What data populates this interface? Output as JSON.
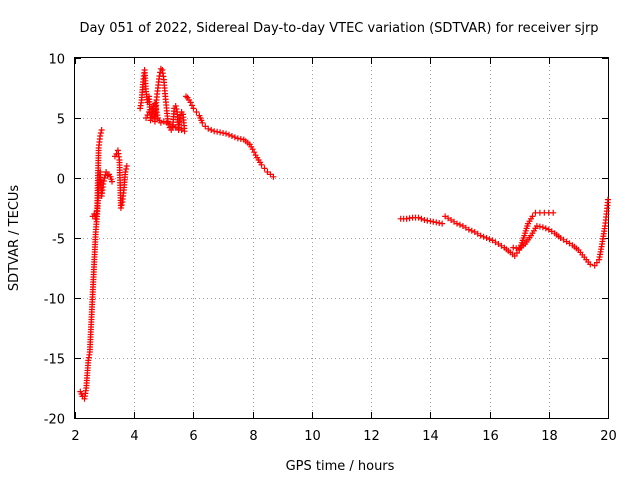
{
  "chart_data": {
    "type": "scatter",
    "title": "Day 051 of 2022, Sidereal Day-to-day VTEC variation (SDTVAR) for receiver sjrp",
    "xlabel": "GPS time / hours",
    "ylabel": "SDTVAR / TECUs",
    "xlim": [
      2,
      20
    ],
    "ylim": [
      -20,
      10
    ],
    "x_ticks": [
      2,
      4,
      6,
      8,
      10,
      12,
      14,
      16,
      18,
      20
    ],
    "y_ticks": [
      -20,
      -15,
      -10,
      -5,
      0,
      5,
      10
    ],
    "grid": true,
    "marker": "+",
    "color": "#ff0000",
    "series": [
      {
        "name": "sjrp",
        "segments": [
          {
            "x": [
              2.18,
              2.25,
              2.32,
              2.38,
              2.45,
              2.5,
              2.55,
              2.6,
              2.65,
              2.7,
              2.75,
              2.8,
              2.85,
              2.9,
              2.95,
              3.0,
              3.05,
              3.1,
              3.15,
              3.2,
              3.25
            ],
            "y": [
              -17.8,
              -18.2,
              -18.4,
              -17.5,
              -15.2,
              -14.5,
              -12.0,
              -9.5,
              -7.0,
              -4.5,
              -3.0,
              -1.0,
              0.5,
              -1.5,
              -0.5,
              0.0,
              0.5,
              0.2,
              0.3,
              0.1,
              -0.3
            ]
          },
          {
            "x": [
              2.6,
              2.65,
              2.7,
              2.75,
              2.8,
              2.85,
              2.9
            ],
            "y": [
              -3.2,
              -3.0,
              -3.4,
              -2.5,
              2.5,
              3.5,
              4.0
            ]
          },
          {
            "x": [
              3.35,
              3.4,
              3.45,
              3.5,
              3.55,
              3.6,
              3.65,
              3.7,
              3.75
            ],
            "y": [
              1.8,
              2.0,
              2.3,
              1.5,
              -2.5,
              -2.0,
              -1.0,
              0.5,
              1.0
            ]
          },
          {
            "x": [
              4.2,
              4.25,
              4.3,
              4.35,
              4.4,
              4.45,
              4.5,
              4.55,
              4.6,
              4.65,
              4.7,
              4.75,
              4.8,
              4.85,
              4.9,
              4.95,
              5.0,
              5.05,
              5.1,
              5.15,
              5.2,
              5.25,
              5.3,
              5.35,
              5.4,
              5.45,
              5.5,
              5.55,
              5.6,
              5.65,
              5.7
            ],
            "y": [
              5.8,
              6.5,
              8.0,
              9.0,
              7.2,
              6.3,
              6.8,
              4.8,
              5.5,
              6.0,
              4.7,
              6.5,
              7.5,
              8.5,
              9.1,
              9.0,
              8.2,
              6.8,
              5.6,
              4.5,
              4.2,
              4.0,
              4.2,
              5.8,
              6.0,
              5.5,
              4.0,
              5.2,
              5.5,
              5.3,
              3.9
            ]
          },
          {
            "x": [
              4.4,
              4.5,
              4.6,
              4.7,
              4.8,
              4.9,
              5.0,
              5.1,
              5.2,
              5.3,
              5.4,
              5.5,
              5.6
            ],
            "y": [
              5.0,
              5.5,
              5.8,
              6.2,
              5.0,
              4.6,
              4.7,
              4.6,
              4.5,
              4.3,
              4.2,
              4.1,
              4.0
            ]
          },
          {
            "x": [
              5.75,
              5.8,
              5.9,
              6.0,
              6.1,
              6.2,
              6.3,
              6.4,
              6.5,
              6.7,
              6.9,
              7.1,
              7.3,
              7.5,
              7.7,
              7.9,
              8.0,
              8.1,
              8.2,
              8.3,
              8.4,
              8.5,
              8.6,
              8.7
            ],
            "y": [
              6.8,
              6.7,
              6.3,
              5.8,
              5.5,
              5.2,
              4.6,
              4.3,
              4.1,
              3.9,
              3.8,
              3.7,
              3.5,
              3.3,
              3.2,
              2.8,
              2.4,
              1.9,
              1.5,
              1.1,
              0.8,
              0.5,
              0.3,
              0.1
            ]
          },
          {
            "x": [
              13.0,
              13.2,
              13.4,
              13.6,
              13.8,
              14.0,
              14.2,
              14.4
            ],
            "y": [
              -3.4,
              -3.4,
              -3.3,
              -3.3,
              -3.5,
              -3.6,
              -3.7,
              -3.8
            ]
          },
          {
            "x": [
              14.5,
              14.7,
              14.9,
              15.1,
              15.3,
              15.5,
              15.7,
              15.9,
              16.1,
              16.3,
              16.5,
              16.7,
              16.85,
              17.0,
              17.15,
              17.3,
              17.45,
              17.55,
              17.7,
              17.85,
              18.0,
              18.15
            ],
            "y": [
              -3.2,
              -3.5,
              -3.8,
              -4.0,
              -4.3,
              -4.5,
              -4.8,
              -5.0,
              -5.2,
              -5.5,
              -5.8,
              -6.2,
              -6.5,
              -6.0,
              -5.0,
              -3.8,
              -3.2,
              -2.9,
              -2.9,
              -2.9,
              -2.9,
              -2.9
            ]
          },
          {
            "x": [
              16.8,
              17.0,
              17.2,
              17.4,
              17.6,
              17.8,
              18.0,
              18.2,
              18.4,
              18.6,
              18.8,
              19.0,
              19.2,
              19.4,
              19.55,
              19.7,
              19.8,
              19.9,
              19.95,
              20.0
            ],
            "y": [
              -5.8,
              -5.9,
              -5.5,
              -4.8,
              -4.0,
              -4.1,
              -4.3,
              -4.6,
              -5.0,
              -5.3,
              -5.6,
              -6.0,
              -6.6,
              -7.2,
              -7.3,
              -6.8,
              -5.5,
              -4.0,
              -3.0,
              -1.8
            ]
          }
        ]
      }
    ]
  }
}
